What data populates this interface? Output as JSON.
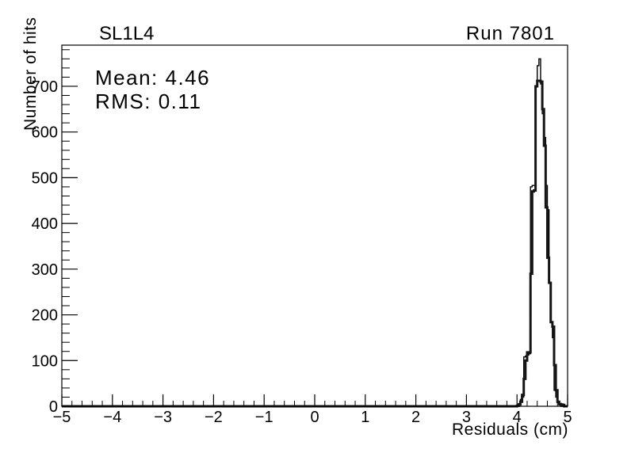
{
  "page": {
    "background": "#ffffff",
    "foreground": "#000000"
  },
  "titles": {
    "left": "SL1L4",
    "right": "Run 7801"
  },
  "stats": {
    "mean": "Mean: 4.46",
    "rms": "RMS:  0.11"
  },
  "chart_data": {
    "type": "line",
    "subtype": "histogram-step",
    "title": "SL1L4",
    "corner_label": "Run 7801",
    "xlabel": "Residuals (cm)",
    "ylabel": "Number of hits",
    "xlim": [
      -5,
      5
    ],
    "ylim": [
      0,
      790
    ],
    "grid": false,
    "legend": "none",
    "annotations": [
      "Mean: 4.46",
      "RMS:  0.11"
    ],
    "axis_color": "#000000",
    "x_ticks": [
      {
        "v": -5,
        "label": "−5"
      },
      {
        "v": -4,
        "label": "−4"
      },
      {
        "v": -3,
        "label": "−3"
      },
      {
        "v": -2,
        "label": "−2"
      },
      {
        "v": -1,
        "label": "−1"
      },
      {
        "v": 0,
        "label": "0"
      },
      {
        "v": 1,
        "label": "1"
      },
      {
        "v": 2,
        "label": "2"
      },
      {
        "v": 3,
        "label": "3"
      },
      {
        "v": 4,
        "label": "4"
      },
      {
        "v": 5,
        "label": "5"
      }
    ],
    "x_minor_step": 0.2,
    "y_ticks": [
      {
        "v": 0,
        "label": "0"
      },
      {
        "v": 100,
        "label": "100"
      },
      {
        "v": 200,
        "label": "200"
      },
      {
        "v": 300,
        "label": "300"
      },
      {
        "v": 400,
        "label": "400"
      },
      {
        "v": 500,
        "label": "500"
      },
      {
        "v": 600,
        "label": "600"
      },
      {
        "v": 700,
        "label": "700"
      }
    ],
    "y_minor_step": 20,
    "series": [
      {
        "name": "residuals-histogram-thin",
        "color": "#000000",
        "line_width": 1.4,
        "bin_start": 4.0,
        "bin_width": 0.0333333,
        "values": [
          2,
          6,
          15,
          20,
          108,
          110,
          112,
          115,
          480,
          483,
          483,
          700,
          745,
          760,
          705,
          640,
          588,
          483,
          430,
          270,
          184,
          150,
          35,
          20,
          8,
          3,
          0
        ]
      },
      {
        "name": "residuals-histogram-thick",
        "color": "#151515",
        "line_width": 3,
        "bin_start": 4.0,
        "bin_width": 0.0333333,
        "values": [
          1,
          4,
          10,
          25,
          60,
          100,
          118,
          118,
          290,
          470,
          472,
          700,
          712,
          712,
          710,
          650,
          570,
          435,
          325,
          270,
          184,
          174,
          90,
          35,
          10,
          5,
          4,
          3,
          0
        ]
      }
    ]
  }
}
